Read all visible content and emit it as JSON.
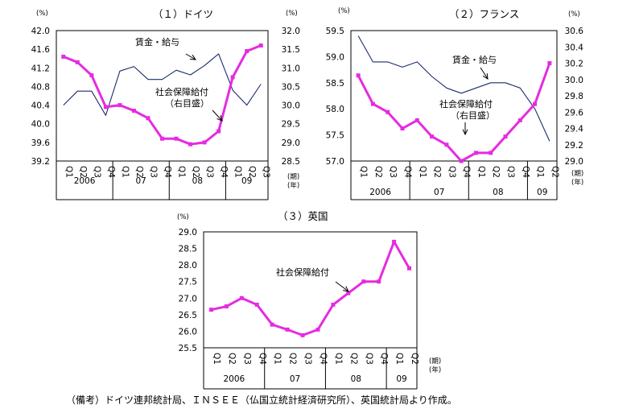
{
  "note": "（備考）ドイツ連邦統計局、ＩＮＳＥＥ（仏国立統計経済研究所）、英国統計局より作成。",
  "chart_data": [
    {
      "type": "line",
      "title": "（１）ドイツ",
      "left_unit": "(%)",
      "right_unit": "(%)",
      "period_label": "(期)",
      "year_label": "(年)",
      "quarters": [
        "Q1",
        "Q2",
        "Q3",
        "Q4",
        "Q1",
        "Q2",
        "Q3",
        "Q4",
        "Q1",
        "Q2",
        "Q3",
        "Q4",
        "Q1",
        "Q2",
        "Q3"
      ],
      "years": [
        {
          "label": "2006",
          "n": 4
        },
        {
          "label": "07",
          "n": 4
        },
        {
          "label": "08",
          "n": 4
        },
        {
          "label": "09",
          "n": 3
        }
      ],
      "left_axis": {
        "ylim": [
          39.2,
          42.0
        ],
        "ticks": [
          "42.0",
          "41.6",
          "41.2",
          "40.8",
          "40.4",
          "40.0",
          "39.6",
          "39.2"
        ]
      },
      "right_axis": {
        "ylim": [
          28.5,
          32.0
        ],
        "ticks": [
          "32.0",
          "31.5",
          "31.0",
          "30.5",
          "30.0",
          "29.5",
          "29.0",
          "28.5"
        ]
      },
      "series": [
        {
          "name": "賃金・給与",
          "axis": "left",
          "color": "#1c2b6b",
          "marker": false,
          "values": [
            40.4,
            40.7,
            40.7,
            40.18,
            41.13,
            41.23,
            40.95,
            40.95,
            41.15,
            41.05,
            41.25,
            41.5,
            40.72,
            40.4,
            40.85
          ]
        },
        {
          "name": "社会保障給付\n（右目盛）",
          "axis": "right",
          "color": "#e62be0",
          "marker": true,
          "values": [
            31.3,
            31.15,
            30.8,
            29.95,
            30.0,
            29.85,
            29.65,
            29.1,
            29.1,
            28.95,
            29.0,
            29.3,
            30.75,
            31.45,
            31.6
          ]
        }
      ],
      "annotations": [
        {
          "text": "賃金・給与"
        },
        {
          "text": "社会保障給付\n（右目盛）"
        }
      ]
    },
    {
      "type": "line",
      "title": "（２）フランス",
      "left_unit": "(%)",
      "right_unit": "(%)",
      "period_label": "(期)",
      "year_label": "(年)",
      "quarters": [
        "Q1",
        "Q2",
        "Q3",
        "Q4",
        "Q1",
        "Q2",
        "Q3",
        "Q4",
        "Q1",
        "Q2",
        "Q3",
        "Q4",
        "Q1",
        "Q2"
      ],
      "years": [
        {
          "label": "2006",
          "n": 4
        },
        {
          "label": "07",
          "n": 4
        },
        {
          "label": "08",
          "n": 4
        },
        {
          "label": "09",
          "n": 2
        }
      ],
      "left_axis": {
        "ylim": [
          57.0,
          59.5
        ],
        "ticks": [
          "59.5",
          "59.0",
          "58.5",
          "58.0",
          "57.5",
          "57.0"
        ]
      },
      "right_axis": {
        "ylim": [
          29.0,
          30.6
        ],
        "ticks": [
          "30.6",
          "30.4",
          "30.2",
          "30.0",
          "29.8",
          "29.6",
          "29.4",
          "29.2",
          "29.0"
        ]
      },
      "series": [
        {
          "name": "賃金・給与",
          "axis": "left",
          "color": "#1c2b6b",
          "marker": false,
          "values": [
            59.4,
            58.9,
            58.9,
            58.8,
            58.9,
            58.62,
            58.4,
            58.3,
            58.4,
            58.5,
            58.5,
            58.4,
            58.0,
            57.38
          ]
        },
        {
          "name": "社会保障給付\n（右目盛）",
          "axis": "right",
          "color": "#e62be0",
          "marker": true,
          "values": [
            30.05,
            29.7,
            29.6,
            29.4,
            29.5,
            29.3,
            29.2,
            29.0,
            29.1,
            29.1,
            29.3,
            29.5,
            29.7,
            30.2
          ]
        }
      ],
      "annotations": [
        {
          "text": "賃金・給与"
        },
        {
          "text": "社会保障給付\n（右目盛）"
        }
      ]
    },
    {
      "type": "line",
      "title": "（３）英国",
      "left_unit": "(%)",
      "period_label": "(期)",
      "year_label": "(年)",
      "quarters": [
        "Q1",
        "Q2",
        "Q3",
        "Q4",
        "Q1",
        "Q2",
        "Q3",
        "Q4",
        "Q1",
        "Q2",
        "Q3",
        "Q4",
        "Q1",
        "Q2"
      ],
      "years": [
        {
          "label": "2006",
          "n": 4
        },
        {
          "label": "07",
          "n": 4
        },
        {
          "label": "08",
          "n": 4
        },
        {
          "label": "09",
          "n": 2
        }
      ],
      "left_axis": {
        "ylim": [
          25.5,
          29.0
        ],
        "ticks": [
          "29.0",
          "28.5",
          "28.0",
          "27.5",
          "27.0",
          "26.5",
          "26.0",
          "25.5"
        ]
      },
      "series": [
        {
          "name": "社会保障給付",
          "axis": "left",
          "color": "#e62be0",
          "marker": true,
          "values": [
            26.65,
            26.75,
            27.0,
            26.8,
            26.2,
            26.05,
            25.88,
            26.05,
            26.8,
            27.15,
            27.5,
            27.5,
            28.7,
            27.9
          ]
        }
      ],
      "annotations": [
        {
          "text": "社会保障給付"
        }
      ]
    }
  ]
}
